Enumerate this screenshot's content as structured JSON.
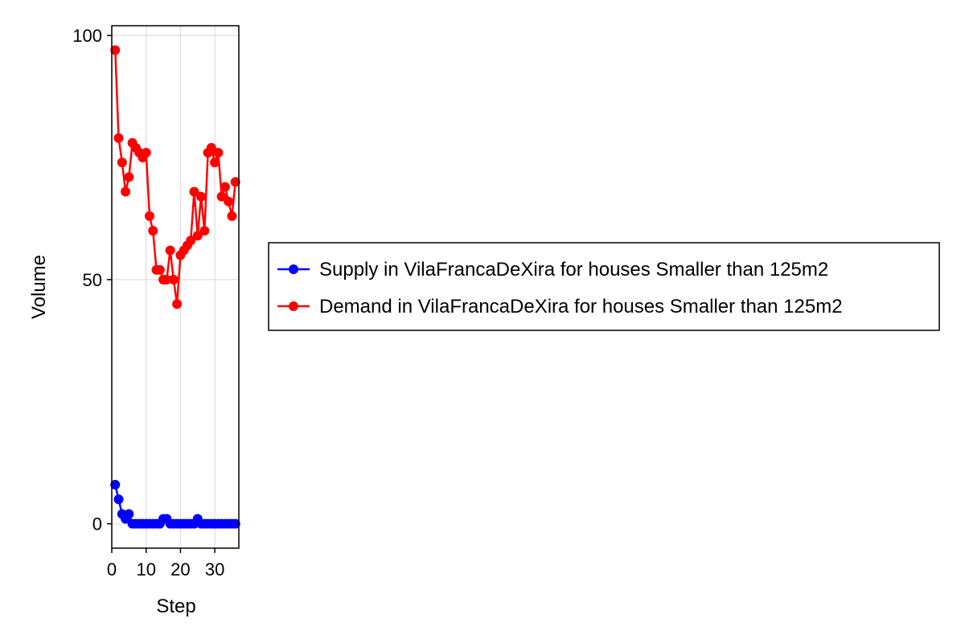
{
  "chart_data": {
    "type": "line",
    "xlabel": "Step",
    "ylabel": "Volume",
    "xlim": [
      0,
      37
    ],
    "ylim": [
      -5,
      102
    ],
    "xticks": [
      0,
      10,
      20,
      30
    ],
    "yticks": [
      0,
      50,
      100
    ],
    "grid": true,
    "legend_position": "right",
    "x": [
      1,
      2,
      3,
      4,
      5,
      6,
      7,
      8,
      9,
      10,
      11,
      12,
      13,
      14,
      15,
      16,
      17,
      18,
      19,
      20,
      21,
      22,
      23,
      24,
      25,
      26,
      27,
      28,
      29,
      30,
      31,
      32,
      33,
      34,
      35,
      36
    ],
    "series": [
      {
        "name": "Supply in VilaFrancaDeXira for houses Smaller than 125m2",
        "color": "#0000ff",
        "values": [
          8,
          5,
          2,
          1,
          2,
          0,
          0,
          0,
          0,
          0,
          0,
          0,
          0,
          0,
          1,
          1,
          0,
          0,
          0,
          0,
          0,
          0,
          0,
          0,
          1,
          0,
          0,
          0,
          0,
          0,
          0,
          0,
          0,
          0,
          0,
          0
        ]
      },
      {
        "name": "Demand in VilaFrancaDeXira for houses Smaller than 125m2",
        "color": "#ff0000",
        "values": [
          97,
          79,
          74,
          68,
          71,
          78,
          77,
          76,
          75,
          76,
          63,
          60,
          52,
          52,
          50,
          50,
          56,
          50,
          45,
          55,
          56,
          57,
          58,
          68,
          59,
          67,
          60,
          76,
          77,
          74,
          76,
          67,
          69,
          66,
          63,
          70
        ]
      }
    ]
  }
}
